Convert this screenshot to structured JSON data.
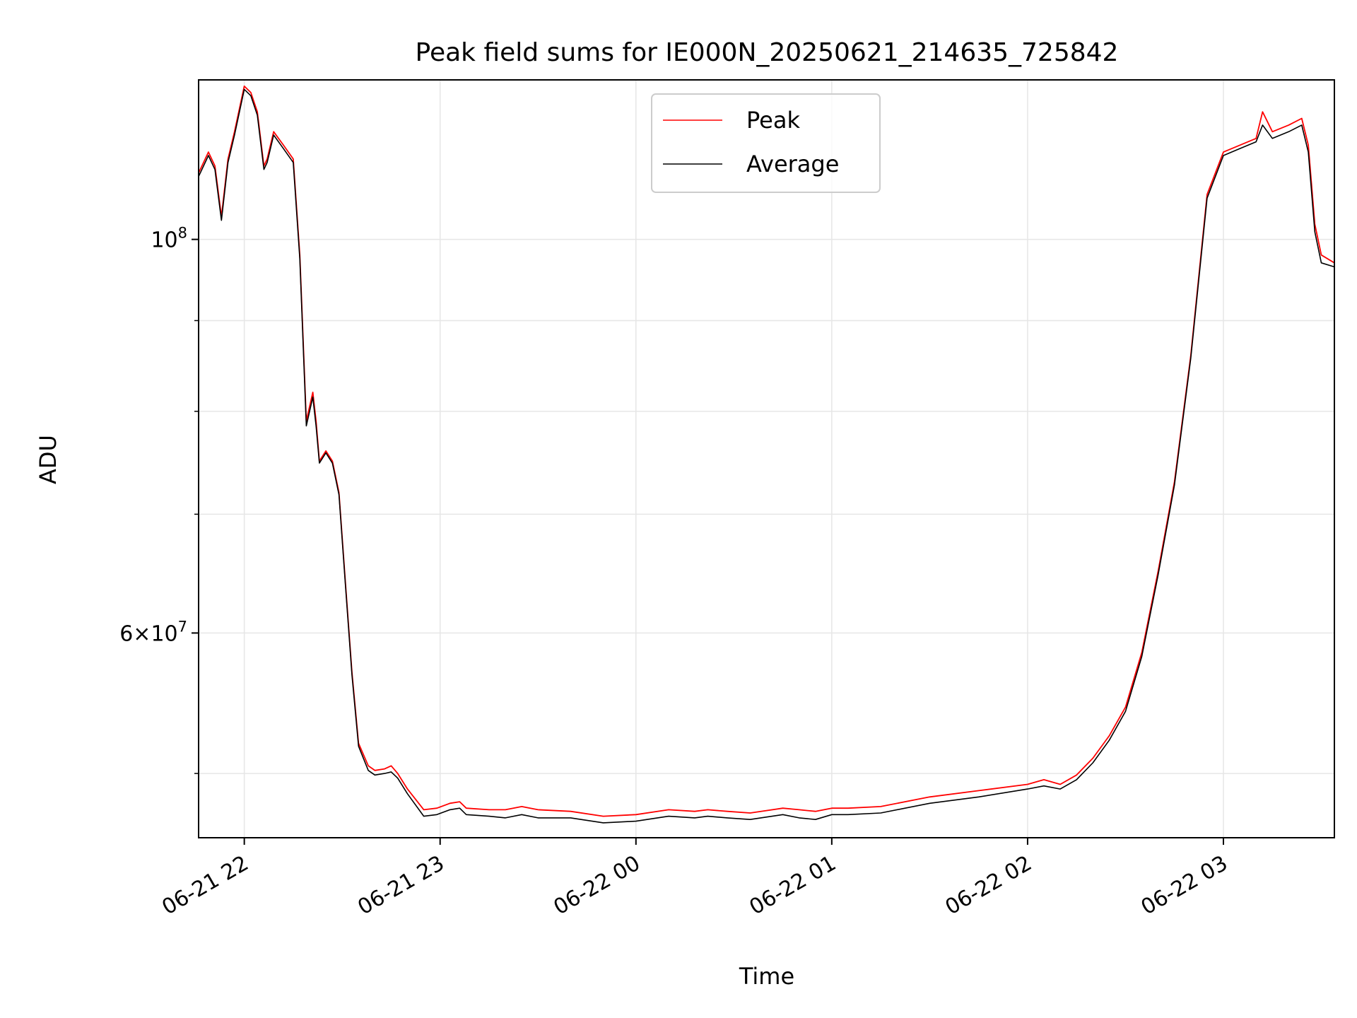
{
  "chart_data": {
    "type": "line",
    "title": "Peak field sums for IE000N_20250621_214635_725842",
    "xlabel": "Time",
    "ylabel": "ADU",
    "yscale": "log",
    "xlim": [
      "2025-06-21 21:46",
      "2025-06-22 03:34"
    ],
    "ylim": [
      46000000,
      123000000
    ],
    "x_tick_labels": [
      "06-21 22",
      "06-21 23",
      "06-22 00",
      "06-22 01",
      "06-22 02",
      "06-22 03"
    ],
    "x_ticks": [
      "2025-06-21 22:00",
      "2025-06-21 23:00",
      "2025-06-22 00:00",
      "2025-06-22 01:00",
      "2025-06-22 02:00",
      "2025-06-22 03:00"
    ],
    "y_major_ticks": [
      {
        "value": 100000000,
        "base": "10",
        "exp": "8",
        "coef": ""
      },
      {
        "value": 60000000,
        "base": "10",
        "exp": "7",
        "coef": "6×"
      }
    ],
    "y_minor_ticks": [
      50000000,
      70000000,
      80000000,
      90000000
    ],
    "grid": true,
    "legend_position": "top-center",
    "series": [
      {
        "name": "Peak",
        "color": "#ff0000",
        "x": [
          "21:46",
          "21:49",
          "21:51",
          "21:53",
          "21:55",
          "21:57",
          "22:00",
          "22:02",
          "22:04",
          "22:06",
          "22:07",
          "22:09",
          "22:12",
          "22:15",
          "22:17",
          "22:19",
          "22:21",
          "22:22",
          "22:23",
          "22:25",
          "22:27",
          "22:29",
          "22:31",
          "22:33",
          "22:35",
          "22:38",
          "22:40",
          "22:43",
          "22:45",
          "22:47",
          "22:50",
          "22:55",
          "22:59",
          "23:03",
          "23:06",
          "23:08",
          "23:15",
          "23:20",
          "23:25",
          "23:30",
          "23:40",
          "23:50",
          "00:00",
          "00:10",
          "00:18",
          "00:22",
          "00:28",
          "00:35",
          "00:45",
          "00:50",
          "00:55",
          "01:00",
          "01:05",
          "01:15",
          "01:30",
          "01:45",
          "02:00",
          "02:05",
          "02:10",
          "02:15",
          "02:20",
          "02:25",
          "02:30",
          "02:35",
          "02:40",
          "02:45",
          "02:50",
          "02:55",
          "03:00",
          "03:05",
          "03:10",
          "03:12",
          "03:15",
          "03:20",
          "03:24",
          "03:26",
          "03:28",
          "03:30",
          "03:34"
        ],
        "y": [
          109000000,
          112000000,
          110000000,
          103000000,
          111000000,
          115000000,
          122000000,
          121000000,
          118000000,
          110000000,
          111000000,
          115000000,
          113000000,
          111000000,
          98000000,
          79000000,
          82000000,
          79000000,
          75000000,
          76000000,
          75000000,
          72000000,
          64000000,
          57000000,
          52000000,
          50500000,
          50200000,
          50300000,
          50500000,
          50000000,
          49000000,
          47700000,
          47800000,
          48100000,
          48200000,
          47800000,
          47700000,
          47700000,
          47900000,
          47700000,
          47600000,
          47300000,
          47400000,
          47700000,
          47600000,
          47700000,
          47600000,
          47500000,
          47800000,
          47700000,
          47600000,
          47800000,
          47800000,
          47900000,
          48500000,
          48900000,
          49300000,
          49600000,
          49300000,
          49900000,
          51000000,
          52500000,
          54500000,
          58500000,
          65000000,
          73000000,
          86000000,
          106000000,
          112000000,
          113000000,
          114000000,
          118000000,
          115000000,
          116000000,
          117000000,
          113000000,
          102000000,
          98000000,
          97000000
        ]
      },
      {
        "name": "Average",
        "color": "#000000",
        "x": [
          "21:46",
          "21:49",
          "21:51",
          "21:53",
          "21:55",
          "21:57",
          "22:00",
          "22:02",
          "22:04",
          "22:06",
          "22:07",
          "22:09",
          "22:12",
          "22:15",
          "22:17",
          "22:19",
          "22:21",
          "22:22",
          "22:23",
          "22:25",
          "22:27",
          "22:29",
          "22:31",
          "22:33",
          "22:35",
          "22:38",
          "22:40",
          "22:43",
          "22:45",
          "22:47",
          "22:50",
          "22:55",
          "22:59",
          "23:03",
          "23:06",
          "23:08",
          "23:15",
          "23:20",
          "23:25",
          "23:30",
          "23:40",
          "23:50",
          "00:00",
          "00:10",
          "00:18",
          "00:22",
          "00:28",
          "00:35",
          "00:45",
          "00:50",
          "00:55",
          "01:00",
          "01:05",
          "01:15",
          "01:30",
          "01:45",
          "02:00",
          "02:05",
          "02:10",
          "02:15",
          "02:20",
          "02:25",
          "02:30",
          "02:35",
          "02:40",
          "02:45",
          "02:50",
          "02:55",
          "03:00",
          "03:05",
          "03:10",
          "03:12",
          "03:15",
          "03:20",
          "03:24",
          "03:26",
          "03:28",
          "03:30",
          "03:34"
        ],
        "y": [
          108500000,
          111500000,
          109500000,
          102500000,
          110500000,
          114500000,
          121500000,
          120500000,
          117500000,
          109500000,
          110500000,
          114500000,
          112500000,
          110500000,
          97500000,
          78500000,
          81500000,
          78500000,
          74800000,
          75800000,
          74800000,
          71800000,
          63800000,
          56800000,
          51800000,
          50200000,
          49900000,
          50000000,
          50100000,
          49700000,
          48700000,
          47300000,
          47400000,
          47700000,
          47800000,
          47400000,
          47300000,
          47200000,
          47400000,
          47200000,
          47200000,
          46900000,
          47000000,
          47300000,
          47200000,
          47300000,
          47200000,
          47100000,
          47400000,
          47200000,
          47100000,
          47400000,
          47400000,
          47500000,
          48100000,
          48500000,
          49000000,
          49200000,
          49000000,
          49600000,
          50700000,
          52200000,
          54200000,
          58200000,
          64700000,
          72700000,
          85700000,
          105500000,
          111500000,
          112500000,
          113500000,
          116000000,
          114000000,
          115000000,
          116000000,
          112000000,
          101000000,
          97000000,
          96500000
        ]
      }
    ]
  }
}
